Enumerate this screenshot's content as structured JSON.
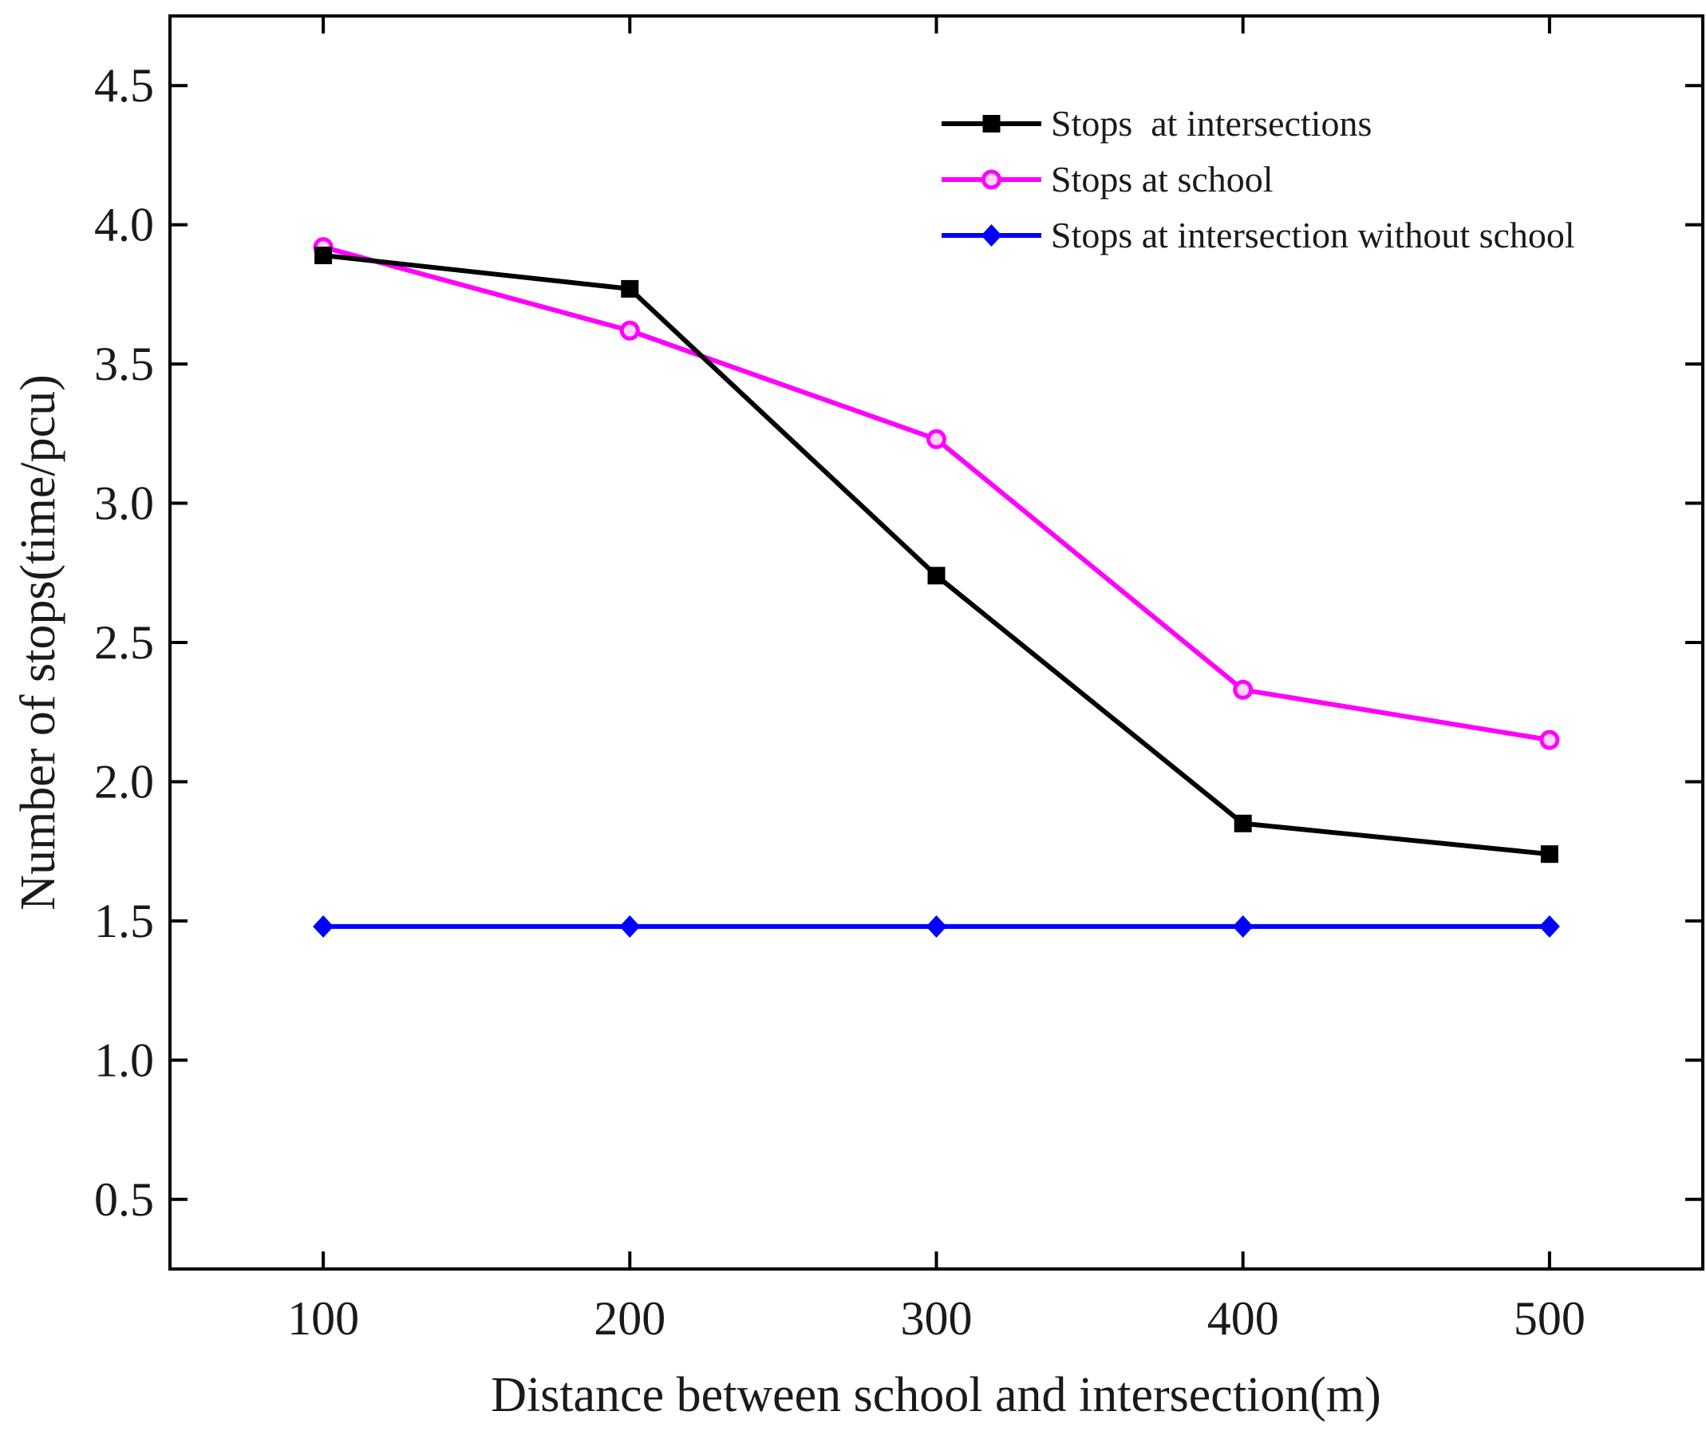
{
  "chart_data": {
    "type": "line",
    "title": "",
    "xlabel": "Distance between school and intersection(m)",
    "ylabel": "Number of stops(time/pcu)",
    "x": [
      100,
      200,
      300,
      400,
      500
    ],
    "xlim": [
      50,
      550
    ],
    "ylim": [
      0.25,
      4.75
    ],
    "xticks": [
      "100",
      "200",
      "300",
      "400",
      "500"
    ],
    "yticks": [
      "0.5",
      "1.0",
      "1.5",
      "2.0",
      "2.5",
      "3.0",
      "3.5",
      "4.0",
      "4.5"
    ],
    "ytick_values": [
      0.5,
      1.0,
      1.5,
      2.0,
      2.5,
      3.0,
      3.5,
      4.0,
      4.5
    ],
    "grid": false,
    "legend_position": "top-right",
    "series": [
      {
        "name": "Stops  at intersections",
        "color": "#000000",
        "marker": "square",
        "values": [
          3.89,
          3.77,
          2.74,
          1.85,
          1.74
        ]
      },
      {
        "name": "Stops at school",
        "color": "#ff00ff",
        "marker": "circle",
        "values": [
          3.92,
          3.62,
          3.23,
          2.33,
          2.15
        ]
      },
      {
        "name": "Stops at intersection without school",
        "color": "#0000ff",
        "marker": "diamond",
        "values": [
          1.48,
          1.48,
          1.48,
          1.48,
          1.48
        ]
      }
    ]
  }
}
